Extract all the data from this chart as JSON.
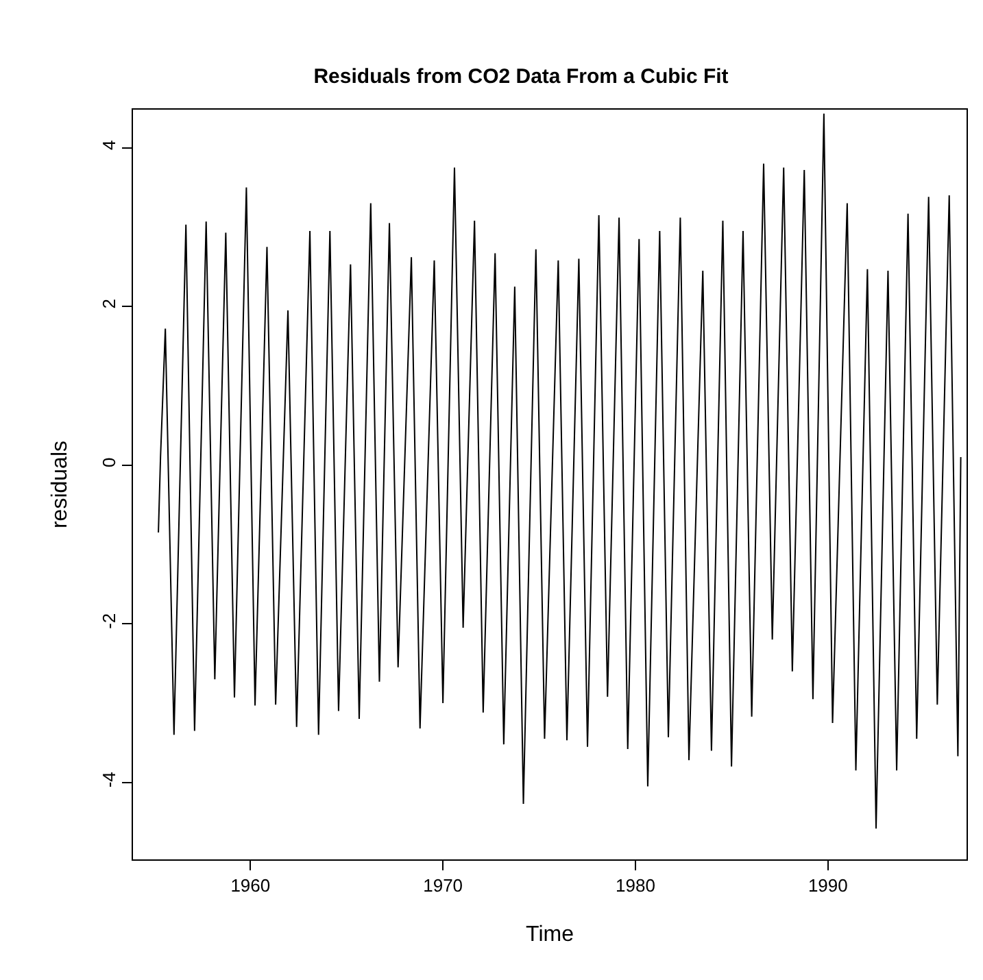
{
  "chart_data": {
    "type": "line",
    "title": "Residuals from CO2 Data From a Cubic Fit",
    "xlabel": "Time",
    "ylabel": "residuals",
    "x": [
      1955.22,
      1955.33,
      1955.58,
      1956.03,
      1956.65,
      1957.1,
      1957.7,
      1958.15,
      1958.72,
      1959.17,
      1959.79,
      1960.24,
      1960.86,
      1961.31,
      1961.95,
      1962.4,
      1963.09,
      1963.54,
      1964.13,
      1964.58,
      1965.2,
      1965.65,
      1966.25,
      1966.7,
      1967.22,
      1967.67,
      1968.36,
      1968.81,
      1969.55,
      1970.0,
      1970.6,
      1971.05,
      1971.64,
      1972.09,
      1972.71,
      1973.16,
      1973.73,
      1974.18,
      1974.83,
      1975.28,
      1975.99,
      1976.44,
      1977.06,
      1977.51,
      1978.1,
      1978.55,
      1979.15,
      1979.6,
      1980.19,
      1980.64,
      1981.26,
      1981.71,
      1982.33,
      1982.78,
      1983.5,
      1983.95,
      1984.54,
      1984.99,
      1985.59,
      1986.04,
      1986.66,
      1987.11,
      1987.7,
      1988.15,
      1988.77,
      1989.22,
      1989.79,
      1990.24,
      1991.0,
      1991.45,
      1992.05,
      1992.5,
      1993.12,
      1993.57,
      1994.16,
      1994.61,
      1995.23,
      1995.68,
      1996.3,
      1996.75,
      1996.9
    ],
    "series": [
      {
        "color": "#000000",
        "values": [
          -0.85,
          0.1,
          1.72,
          -3.4,
          3.03,
          -3.35,
          3.07,
          -2.7,
          2.93,
          -2.93,
          3.5,
          -3.03,
          2.75,
          -3.02,
          1.95,
          -3.3,
          2.95,
          -3.4,
          2.95,
          -3.1,
          2.53,
          -3.2,
          3.3,
          -2.73,
          3.05,
          -2.55,
          2.62,
          -3.32,
          2.58,
          -3.0,
          3.75,
          -2.05,
          3.08,
          -3.12,
          2.67,
          -3.52,
          2.25,
          -4.27,
          2.72,
          -3.45,
          2.58,
          -3.47,
          2.6,
          -3.55,
          3.15,
          -2.92,
          3.12,
          -3.58,
          2.85,
          -4.05,
          2.95,
          -3.43,
          3.12,
          -3.72,
          2.45,
          -3.6,
          3.08,
          -3.8,
          2.95,
          -3.17,
          3.8,
          -2.2,
          3.75,
          -2.6,
          3.72,
          -2.95,
          4.43,
          -3.25,
          3.3,
          -3.85,
          2.47,
          -4.58,
          2.45,
          -3.85,
          3.17,
          -3.45,
          3.38,
          -3.02,
          3.4,
          -3.67,
          0.1
        ]
      }
    ],
    "xlim": [
      1953.9,
      1997.2
    ],
    "ylim": [
      -4.97,
      4.48
    ],
    "xticks": [
      1960,
      1970,
      1980,
      1990
    ],
    "yticks": [
      -4,
      -2,
      0,
      2,
      4
    ],
    "grid": false,
    "marker": "none",
    "line_style": "solid"
  }
}
